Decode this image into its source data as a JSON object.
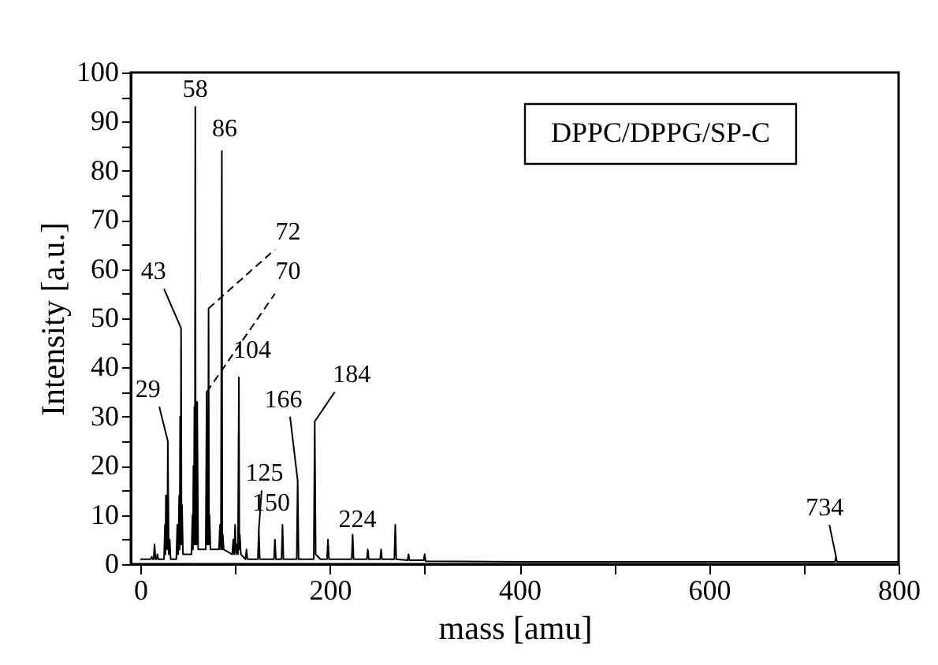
{
  "chart_data": {
    "type": "line",
    "xlabel": "mass [amu]",
    "ylabel": "Intensity [a.u.]",
    "x": [
      0,
      11,
      12,
      13,
      14,
      15,
      16,
      17,
      18,
      19,
      25,
      26,
      26.5,
      27,
      27.5,
      28,
      28.5,
      29,
      30,
      31,
      32,
      38,
      39,
      40,
      41,
      41.5,
      42,
      42.5,
      43,
      43.5,
      44,
      45,
      54,
      55,
      55.5,
      56,
      56.5,
      57,
      57.5,
      58,
      58.5,
      59,
      59.5,
      60,
      61,
      69,
      70,
      70.5,
      71,
      71.5,
      72,
      72.5,
      73,
      74,
      83,
      84,
      85,
      86,
      86.5,
      87,
      88,
      97,
      98,
      99,
      100,
      101,
      102,
      103,
      104,
      104.5,
      105,
      106,
      111,
      112,
      113,
      124,
      125,
      126,
      141,
      142,
      143,
      149,
      150,
      151,
      165,
      166,
      167,
      183,
      184,
      185,
      190,
      197,
      198,
      199,
      223,
      224,
      225,
      239,
      240,
      241,
      253,
      254,
      255,
      268,
      269,
      270,
      282,
      283,
      284,
      299,
      300,
      301,
      400,
      733,
      734,
      735,
      800
    ],
    "series": [
      {
        "color": "#000000",
        "values": [
          1,
          1,
          1.5,
          1,
          1,
          4,
          1,
          1,
          2,
          1,
          1,
          8,
          2,
          14,
          3,
          10,
          3,
          25,
          2,
          5,
          1,
          1,
          8,
          2,
          14,
          3,
          30,
          4,
          48,
          4,
          12,
          2,
          2,
          10,
          3,
          20,
          4,
          32,
          4,
          93,
          4,
          18,
          4,
          33,
          3,
          3,
          35,
          4,
          12,
          4,
          52,
          4,
          10,
          3,
          3,
          8,
          3,
          84,
          3,
          6,
          3,
          2,
          5,
          2,
          8,
          2,
          4,
          2,
          38,
          3,
          6,
          2,
          1,
          3,
          1,
          1,
          7,
          1,
          1,
          5,
          1,
          1,
          8,
          1,
          1,
          17,
          1,
          1,
          29,
          2,
          1,
          1,
          5,
          1,
          1,
          6,
          1,
          1,
          3,
          1,
          1,
          3,
          1,
          1,
          8,
          1,
          0.8,
          2,
          0.8,
          0.8,
          2,
          0.6,
          0.5,
          0.5,
          1.5,
          0.5,
          0.5
        ]
      }
    ],
    "xlim": [
      -10,
      800
    ],
    "xticks": [
      0,
      {
        "value": 100,
        "label": null
      },
      200,
      {
        "value": 300,
        "label": null
      },
      400,
      {
        "value": 500,
        "label": null
      },
      600,
      {
        "value": 700,
        "label": null
      },
      800
    ],
    "ylim": [
      0,
      100
    ],
    "yticks": [
      0,
      {
        "value": 5,
        "label": null
      },
      10,
      {
        "value": 15,
        "label": null
      },
      20,
      {
        "value": 25,
        "label": null
      },
      30,
      {
        "value": 35,
        "label": null
      },
      40,
      {
        "value": 45,
        "label": null
      },
      50,
      {
        "value": 55,
        "label": null
      },
      60,
      {
        "value": 65,
        "label": null
      },
      70,
      {
        "value": 75,
        "label": null
      },
      80,
      {
        "value": 85,
        "label": null
      },
      90,
      {
        "value": 95,
        "label": null
      },
      100
    ],
    "grid": false,
    "annotations": [
      "DPPC/DPPG/SP-C",
      {
        "text": "29",
        "x": 29,
        "y": 25
      },
      {
        "text": "43",
        "x": 43,
        "y": 48
      },
      {
        "text": "58",
        "x": 58,
        "y": 93
      },
      {
        "text": "86",
        "x": 86,
        "y": 84
      },
      {
        "text": "72",
        "x": 72,
        "y": 52
      },
      {
        "text": "70",
        "x": 70,
        "y": 35
      },
      {
        "text": "104",
        "x": 104,
        "y": 38
      },
      {
        "text": "166",
        "x": 166,
        "y": 17
      },
      {
        "text": "125",
        "x": 125,
        "y": 7
      },
      {
        "text": "150",
        "x": 150,
        "y": 8
      },
      {
        "text": "184",
        "x": 184,
        "y": 29
      },
      {
        "text": "224",
        "x": 224,
        "y": 6
      },
      {
        "text": "734",
        "x": 734,
        "y": 1.5
      }
    ]
  }
}
